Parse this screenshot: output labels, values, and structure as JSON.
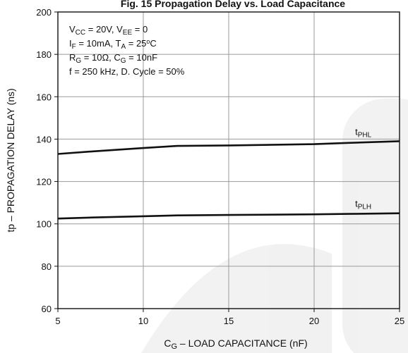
{
  "chart_data": {
    "type": "line",
    "title": "Fig. 15 Propagation Delay vs. Load Capacitance",
    "xlabel": {
      "main": "C",
      "sub": "G",
      "rest": " – LOAD CAPACITANCE (nF)"
    },
    "ylabel": "tp – PROPAGATION DELAY (ns)",
    "xlim": [
      5,
      25
    ],
    "ylim": [
      60,
      200
    ],
    "xticks": [
      5,
      10,
      15,
      20,
      25
    ],
    "yticks": [
      60,
      80,
      100,
      120,
      140,
      160,
      180,
      200
    ],
    "grid": true,
    "conditions": [
      {
        "parts": [
          {
            "t": "V"
          },
          {
            "t": "CC",
            "sub": true
          },
          {
            "t": " = 20V, V"
          },
          {
            "t": "EE",
            "sub": true
          },
          {
            "t": " = 0"
          }
        ]
      },
      {
        "parts": [
          {
            "t": "I"
          },
          {
            "t": "F",
            "sub": true
          },
          {
            "t": " = 10mA, T"
          },
          {
            "t": "A",
            "sub": true
          },
          {
            "t": " = 25"
          },
          {
            "t": "o",
            "sup": true
          },
          {
            "t": "C"
          }
        ]
      },
      {
        "parts": [
          {
            "t": "R"
          },
          {
            "t": "G",
            "sub": true
          },
          {
            "t": " = 10Ω, C"
          },
          {
            "t": "G",
            "sub": true
          },
          {
            "t": " = 10nF"
          }
        ]
      },
      {
        "parts": [
          {
            "t": "f = 250 kHz, D. Cycle = 50%"
          }
        ]
      }
    ],
    "series": [
      {
        "label_main": "t",
        "label_sub": "PHL",
        "x": [
          5,
          7,
          10,
          12,
          15,
          20,
          22,
          25
        ],
        "y": [
          133,
          134.2,
          135.8,
          136.8,
          137,
          137.6,
          138.2,
          139
        ]
      },
      {
        "label_main": "t",
        "label_sub": "PLH",
        "x": [
          5,
          7,
          10,
          12,
          15,
          20,
          22,
          25
        ],
        "y": [
          102.5,
          103,
          103.6,
          104,
          104.2,
          104.5,
          104.7,
          105
        ]
      }
    ]
  }
}
